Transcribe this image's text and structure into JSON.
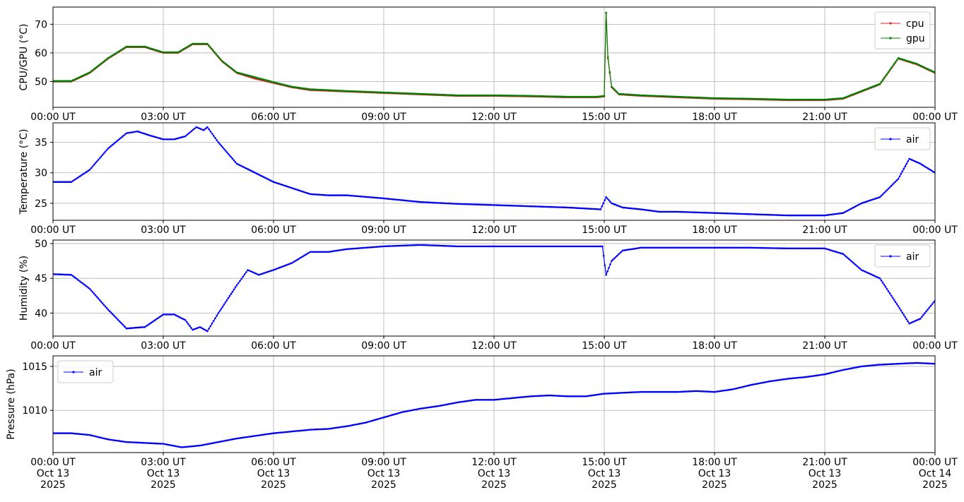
{
  "chart_data": [
    {
      "type": "line",
      "ylabel": "CPU/GPU (°C)",
      "ylim": [
        41,
        76
      ],
      "yticks": [
        50,
        60,
        70
      ],
      "xlim": [
        0,
        24
      ],
      "xticks": [
        0,
        3,
        6,
        9,
        12,
        15,
        18,
        21,
        24
      ],
      "xtick_labels": [
        "00:00 UT",
        "03:00 UT",
        "06:00 UT",
        "09:00 UT",
        "12:00 UT",
        "15:00 UT",
        "18:00 UT",
        "21:00 UT",
        "00:00 UT"
      ],
      "grid": true,
      "legend_position": "top-right",
      "series": [
        {
          "name": "cpu",
          "color": "#d62728",
          "x": [
            0,
            0.5,
            1,
            1.5,
            2,
            2.5,
            3,
            3.4,
            3.8,
            4.2,
            4.6,
            5,
            5.5,
            6,
            6.5,
            7,
            8,
            9,
            10,
            11,
            12,
            13,
            14,
            14.8,
            15.0,
            15.05,
            15.1,
            15.2,
            15.4,
            16,
            17,
            18,
            19,
            20,
            21,
            21.5,
            22,
            22.5,
            23,
            23.5,
            24
          ],
          "y": [
            50,
            50,
            53,
            58,
            62,
            62,
            60,
            60,
            63,
            63,
            57,
            53,
            51,
            49.5,
            48,
            47,
            46.5,
            46,
            45.5,
            45,
            45,
            44.8,
            44.5,
            44.5,
            44.8,
            74,
            58,
            48,
            45.5,
            45,
            44.5,
            44,
            43.8,
            43.5,
            43.5,
            44,
            46.5,
            49,
            58,
            56,
            53
          ]
        },
        {
          "name": "gpu",
          "color": "#008000",
          "x": [
            0,
            0.5,
            1,
            1.5,
            2,
            2.5,
            3,
            3.4,
            3.8,
            4.2,
            4.6,
            5,
            5.5,
            6,
            6.5,
            7,
            8,
            9,
            10,
            11,
            12,
            13,
            14,
            14.8,
            15.0,
            15.05,
            15.1,
            15.2,
            15.4,
            16,
            17,
            18,
            19,
            20,
            21,
            21.5,
            22,
            22.5,
            23,
            23.5,
            24
          ],
          "y": [
            50.2,
            50.2,
            53.2,
            58.2,
            62.2,
            62.2,
            60.2,
            60.2,
            63.2,
            63.2,
            57.2,
            53.2,
            51.5,
            49.8,
            48.2,
            47.3,
            46.7,
            46.2,
            45.7,
            45.2,
            45.2,
            45,
            44.7,
            44.7,
            45,
            74,
            58.5,
            48.2,
            45.7,
            45.2,
            44.7,
            44.2,
            44,
            43.7,
            43.7,
            44.2,
            46.7,
            49.2,
            58.2,
            56.2,
            53.2
          ]
        }
      ]
    },
    {
      "type": "line",
      "ylabel": "Temperature (°C)",
      "ylim": [
        22.2,
        38.2
      ],
      "yticks": [
        25,
        30,
        35
      ],
      "xlim": [
        0,
        24
      ],
      "xticks": [
        0,
        3,
        6,
        9,
        12,
        15,
        18,
        21,
        24
      ],
      "xtick_labels": [
        "00:00 UT",
        "03:00 UT",
        "06:00 UT",
        "09:00 UT",
        "12:00 UT",
        "15:00 UT",
        "18:00 UT",
        "21:00 UT",
        "00:00 UT"
      ],
      "grid": true,
      "legend_position": "top-right",
      "series": [
        {
          "name": "air",
          "color": "#0000ff",
          "x": [
            0,
            0.5,
            1,
            1.5,
            2,
            2.3,
            2.6,
            3,
            3.3,
            3.6,
            3.9,
            4.1,
            4.2,
            4.5,
            5,
            5.5,
            6,
            6.5,
            7,
            7.5,
            8,
            9,
            10,
            11,
            12,
            13,
            14,
            14.9,
            15.05,
            15.2,
            15.5,
            16,
            16.5,
            17,
            18,
            19,
            20,
            21,
            21.5,
            22,
            22.5,
            23,
            23.3,
            23.6,
            24
          ],
          "y": [
            28.5,
            28.5,
            30.5,
            34,
            36.5,
            36.8,
            36.2,
            35.5,
            35.5,
            36,
            37.5,
            37,
            37.5,
            35,
            31.5,
            30,
            28.5,
            27.5,
            26.5,
            26.3,
            26.3,
            25.8,
            25.2,
            24.9,
            24.7,
            24.5,
            24.3,
            24,
            26,
            25,
            24.3,
            24,
            23.6,
            23.6,
            23.4,
            23.2,
            23,
            23,
            23.4,
            25,
            26,
            29,
            32.3,
            31.5,
            30
          ]
        }
      ]
    },
    {
      "type": "line",
      "ylabel": "Humidity (%)",
      "ylim": [
        36.7,
        50.5
      ],
      "yticks": [
        40,
        45,
        50
      ],
      "xlim": [
        0,
        24
      ],
      "xticks": [
        0,
        3,
        6,
        9,
        12,
        15,
        18,
        21,
        24
      ],
      "xtick_labels": [
        "00:00 UT",
        "03:00 UT",
        "06:00 UT",
        "09:00 UT",
        "12:00 UT",
        "15:00 UT",
        "18:00 UT",
        "21:00 UT",
        "00:00 UT"
      ],
      "grid": true,
      "legend_position": "top-right",
      "series": [
        {
          "name": "air",
          "color": "#0000ff",
          "x": [
            0,
            0.5,
            1,
            1.5,
            2,
            2.5,
            3,
            3.3,
            3.6,
            3.8,
            4.0,
            4.2,
            4.5,
            5,
            5.3,
            5.6,
            6,
            6.5,
            7,
            7.5,
            8,
            9,
            10,
            11,
            12,
            13,
            14,
            14.95,
            15.05,
            15.2,
            15.5,
            16,
            17,
            18,
            19,
            20,
            21,
            21.5,
            22,
            22.5,
            23,
            23.3,
            23.6,
            24
          ],
          "y": [
            45.6,
            45.5,
            43.5,
            40.5,
            37.8,
            38,
            39.8,
            39.8,
            39,
            37.6,
            38,
            37.4,
            40,
            44,
            46.2,
            45.5,
            46.2,
            47.2,
            48.8,
            48.8,
            49.2,
            49.6,
            49.8,
            49.6,
            49.6,
            49.6,
            49.6,
            49.6,
            45.5,
            47.5,
            49,
            49.4,
            49.4,
            49.4,
            49.4,
            49.3,
            49.3,
            48.5,
            46.2,
            45,
            41,
            38.5,
            39.2,
            41.8
          ]
        }
      ]
    },
    {
      "type": "line",
      "ylabel": "Pressure (hPa)",
      "ylim": [
        1005.2,
        1016.2
      ],
      "yticks": [
        1010,
        1015
      ],
      "xlim": [
        0,
        24
      ],
      "xticks": [
        0,
        3,
        6,
        9,
        12,
        15,
        18,
        21,
        24
      ],
      "xtick_labels": [
        [
          "00:00 UT",
          "Oct 13",
          "2025"
        ],
        [
          "03:00 UT",
          "Oct 13",
          "2025"
        ],
        [
          "06:00 UT",
          "Oct 13",
          "2025"
        ],
        [
          "09:00 UT",
          "Oct 13",
          "2025"
        ],
        [
          "12:00 UT",
          "Oct 13",
          "2025"
        ],
        [
          "15:00 UT",
          "Oct 13",
          "2025"
        ],
        [
          "18:00 UT",
          "Oct 13",
          "2025"
        ],
        [
          "21:00 UT",
          "Oct 13",
          "2025"
        ],
        [
          "00:00 UT",
          "Oct 14",
          "2025"
        ]
      ],
      "grid": true,
      "legend_position": "top-left",
      "series": [
        {
          "name": "air",
          "color": "#0000ff",
          "x": [
            0,
            0.5,
            1,
            1.5,
            2,
            2.5,
            3,
            3.5,
            4,
            4.5,
            5,
            5.5,
            6,
            6.5,
            7,
            7.5,
            8,
            8.5,
            9,
            9.5,
            10,
            10.5,
            11,
            11.5,
            12,
            12.5,
            13,
            13.5,
            14,
            14.5,
            15,
            15.5,
            16,
            16.5,
            17,
            17.5,
            18,
            18.5,
            19,
            19.5,
            20,
            20.5,
            21,
            21.5,
            22,
            22.5,
            23,
            23.5,
            24
          ],
          "y": [
            1007.4,
            1007.4,
            1007.2,
            1006.7,
            1006.4,
            1006.3,
            1006.2,
            1005.8,
            1006,
            1006.4,
            1006.8,
            1007.1,
            1007.4,
            1007.6,
            1007.8,
            1007.9,
            1008.2,
            1008.6,
            1009.2,
            1009.8,
            1010.2,
            1010.5,
            1010.9,
            1011.2,
            1011.2,
            1011.4,
            1011.6,
            1011.7,
            1011.6,
            1011.6,
            1011.9,
            1012,
            1012.1,
            1012.1,
            1012.1,
            1012.2,
            1012.1,
            1012.4,
            1012.9,
            1013.3,
            1013.6,
            1013.8,
            1014.1,
            1014.6,
            1015,
            1015.2,
            1015.3,
            1015.4,
            1015.3
          ]
        }
      ]
    }
  ]
}
